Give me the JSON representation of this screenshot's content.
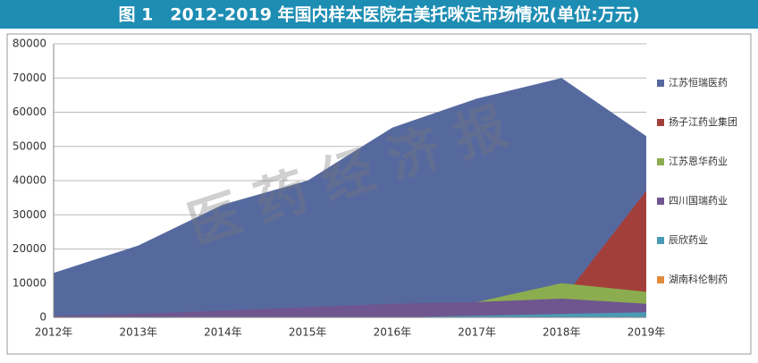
{
  "chart_data": {
    "type": "area",
    "title": "图 1　2012-2019 年国内样本医院右美托咪定市场情况(单位:万元)",
    "watermark": "医 药 经 济 报",
    "categories": [
      "2012年",
      "2013年",
      "2014年",
      "2015年",
      "2016年",
      "2017年",
      "2018年",
      "2019年"
    ],
    "series": [
      {
        "name": "江苏恒瑞医药",
        "color": "#56699f",
        "values": [
          13000,
          21000,
          33000,
          40000,
          55500,
          64000,
          70000,
          53000
        ]
      },
      {
        "name": "扬子江药业集团",
        "color": "#a33f3b",
        "values": [
          0,
          0,
          0,
          0,
          0,
          0,
          5000,
          37000
        ]
      },
      {
        "name": "江苏恩华药业",
        "color": "#8cad4f",
        "values": [
          0,
          0,
          0,
          0,
          3000,
          4500,
          10000,
          7500
        ]
      },
      {
        "name": "四川国瑞药业",
        "color": "#6f5690",
        "values": [
          500,
          1000,
          2000,
          3000,
          4000,
          4500,
          5500,
          4000
        ]
      },
      {
        "name": "辰欣药业",
        "color": "#4a9bb5",
        "values": [
          0,
          0,
          0,
          0,
          0,
          500,
          1000,
          1500
        ]
      },
      {
        "name": "湖南科伦制药",
        "color": "#e08a3c",
        "values": [
          0,
          0,
          0,
          0,
          0,
          0,
          0,
          0
        ]
      }
    ],
    "ylim": [
      0,
      80000
    ],
    "yticks": [
      0,
      10000,
      20000,
      30000,
      40000,
      50000,
      60000,
      70000,
      80000
    ],
    "grid": true
  }
}
